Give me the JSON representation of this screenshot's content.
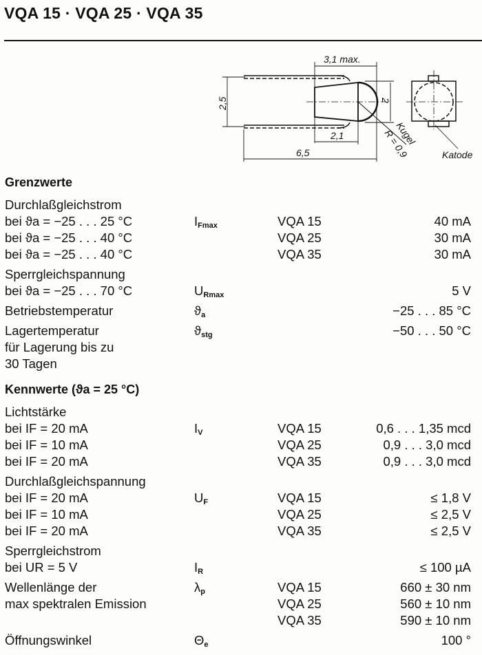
{
  "title": "VQA 15 · VQA 25 · VQA 35",
  "drawing": {
    "dim_length_max": "3,1 max.",
    "dim_height": "2,5",
    "dim_body_height": "2",
    "dim_body_length": "2,1",
    "dim_total_length": "6,5",
    "sphere_label": "Kugel",
    "radius_label": "R = 0,9",
    "cathode_label": "Katode"
  },
  "sections": [
    {
      "heading": "Grenzwerte",
      "groups": [
        {
          "rows": [
            {
              "param": "Durchlaßgleichstrom"
            },
            {
              "param": "bei ϑa = −25 . . . 25 °C",
              "symbol": "I",
              "sub": "Fmax",
              "type": "VQA 15",
              "value": "40 mA"
            },
            {
              "param": "bei ϑa = −25 . . . 40 °C",
              "type": "VQA 25",
              "value": "30 mA"
            },
            {
              "param": "bei ϑa = −25 . . . 40 °C",
              "type": "VQA 35",
              "value": "30 mA"
            }
          ]
        },
        {
          "rows": [
            {
              "param": "Sperrgleichspannung"
            },
            {
              "param": "bei ϑa = −25 . . . 70 °C",
              "symbol": "U",
              "sub": "Rmax",
              "value": "5 V"
            }
          ]
        },
        {
          "rows": [
            {
              "param": "Betriebstemperatur",
              "symbol": "ϑ",
              "sub": "a",
              "value": "−25 . . . 85 °C"
            }
          ]
        },
        {
          "rows": [
            {
              "param": "Lagertemperatur",
              "symbol": "ϑ",
              "sub": "stg",
              "value": "−50 . . . 50 °C"
            },
            {
              "param": "für Lagerung bis zu"
            },
            {
              "param": "30 Tagen"
            }
          ]
        }
      ]
    },
    {
      "heading": "Kennwerte (ϑa = 25 °C)",
      "groups": [
        {
          "rows": [
            {
              "param": "Lichtstärke"
            },
            {
              "param": "bei IF = 20 mA",
              "symbol": "I",
              "sub": "V",
              "type": "VQA 15",
              "value": "0,6 . . . 1,35 mcd"
            },
            {
              "param": "bei IF = 10 mA",
              "type": "VQA 25",
              "value": "0,9 . . . 3,0 mcd"
            },
            {
              "param": "bei IF = 20 mA",
              "type": "VQA 35",
              "value": "0,9 . . . 3,0 mcd"
            }
          ]
        },
        {
          "rows": [
            {
              "param": "Durchlaßgleichspannung"
            },
            {
              "param": "bei IF = 20 mA",
              "symbol": "U",
              "sub": "F",
              "type": "VQA 15",
              "value": "≤ 1,8 V"
            },
            {
              "param": "bei IF = 10 mA",
              "type": "VQA 25",
              "value": "≤ 2,5 V"
            },
            {
              "param": "bei IF = 20 mA",
              "type": "VQA 35",
              "value": "≤ 2,5 V"
            }
          ]
        },
        {
          "rows": [
            {
              "param": "Sperrgleichstrom"
            },
            {
              "param": "bei UR = 5 V",
              "symbol": "I",
              "sub": "R",
              "value": "≤ 100 µA"
            }
          ]
        },
        {
          "rows": [
            {
              "param": "Wellenlänge der",
              "symbol": "λ",
              "sub": "p",
              "type": "VQA 15",
              "value": "660 ± 30 nm"
            },
            {
              "param": "max spektralen Emission",
              "type": "VQA 25",
              "value": "560 ± 10 nm"
            },
            {
              "param": "",
              "type": "VQA 35",
              "value": "590 ± 10 nm"
            }
          ]
        },
        {
          "rows": [
            {
              "param": "Öffnungswinkel",
              "symbol": "Θ",
              "sub": "e",
              "value": "100 °"
            }
          ]
        }
      ]
    }
  ]
}
